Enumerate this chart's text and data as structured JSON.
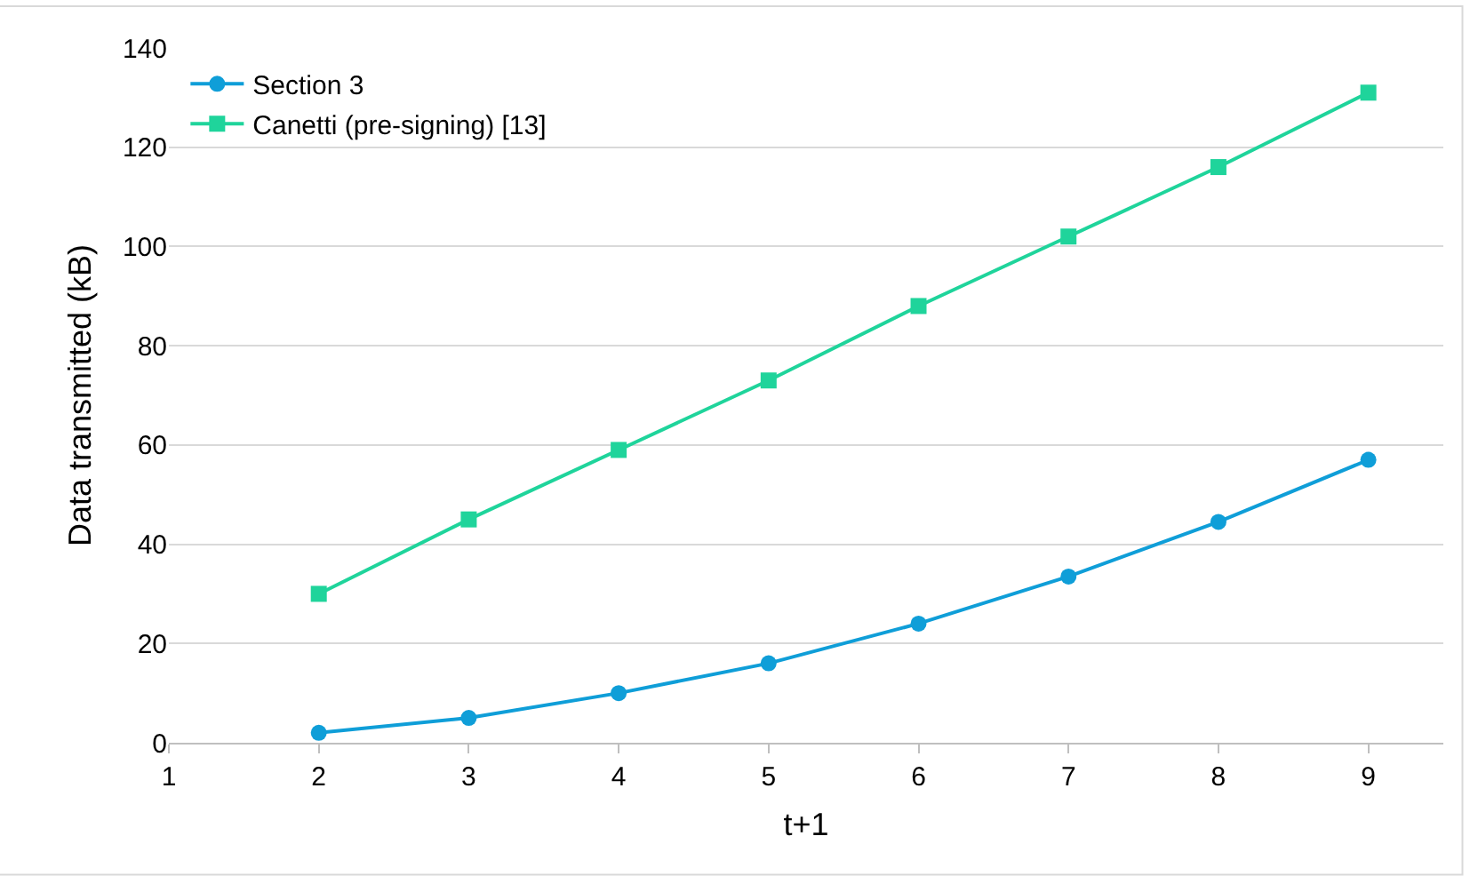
{
  "chart_data": {
    "type": "line",
    "xlabel": "t+1",
    "ylabel": "Data transmitted (kB)",
    "x": [
      2,
      3,
      4,
      5,
      6,
      7,
      8,
      9
    ],
    "series": [
      {
        "name": "Section 3",
        "color": "#0f9ed8",
        "marker": "circle",
        "values": [
          2,
          5,
          10,
          16,
          24,
          33.5,
          44.5,
          57
        ]
      },
      {
        "name": "Canetti (pre-signing) [13]",
        "color": "#1fd49b",
        "marker": "square",
        "values": [
          30,
          45,
          59,
          73,
          88,
          102,
          116,
          131
        ]
      }
    ],
    "xlim": [
      1,
      9.5
    ],
    "xticks": [
      1,
      2,
      3,
      4,
      5,
      6,
      7,
      8,
      9
    ],
    "ylim": [
      0,
      140
    ],
    "yticks": [
      0,
      20,
      40,
      60,
      80,
      100,
      120,
      140
    ],
    "grid": "y",
    "legend": "top left",
    "line_style": "solid"
  }
}
